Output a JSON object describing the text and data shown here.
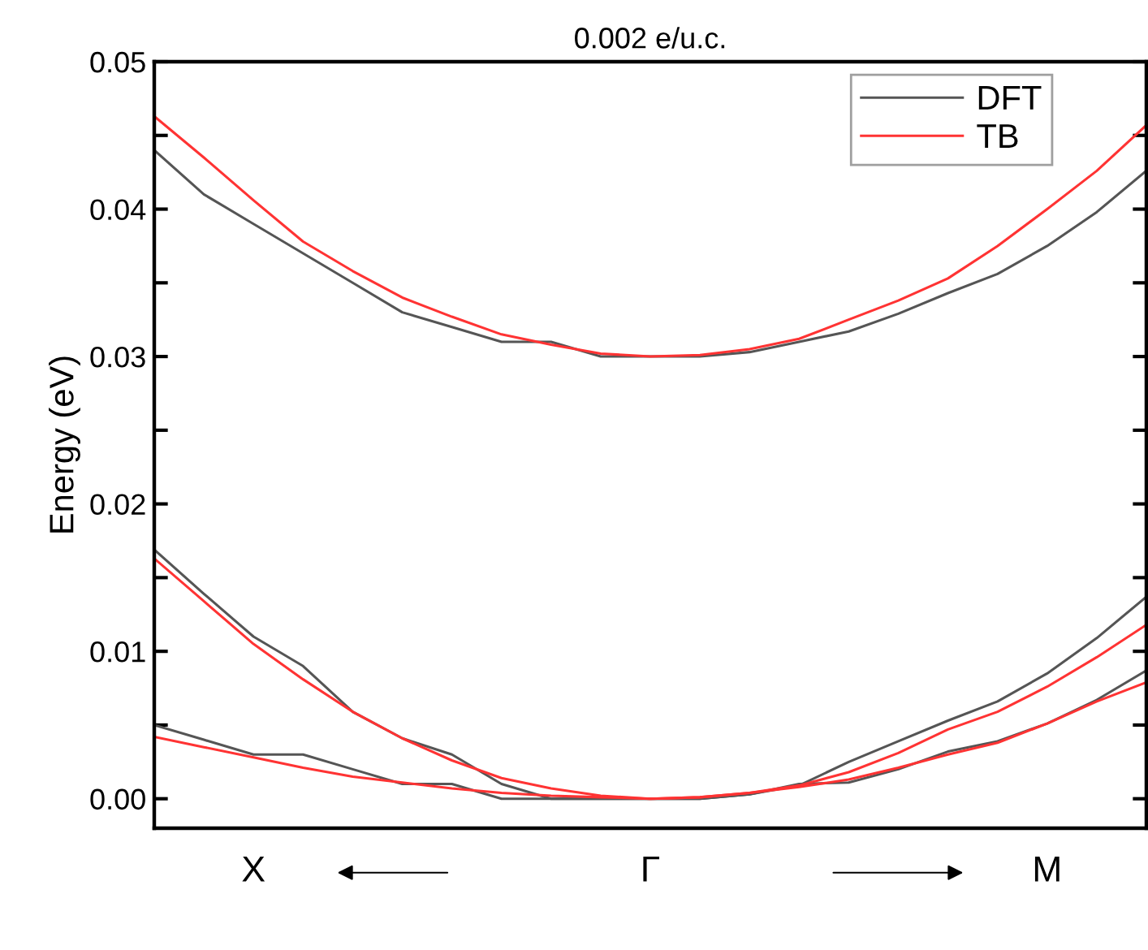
{
  "chart_data": {
    "type": "line",
    "title": "0.002 e/u.c.",
    "ylabel": "Energy (eV)",
    "categories": [
      null,
      null,
      "X",
      null,
      null,
      null,
      null,
      null,
      null,
      null,
      "Γ",
      null,
      null,
      null,
      null,
      null,
      null,
      null,
      "M",
      null,
      null
    ],
    "ylim": [
      -0.002,
      0.05
    ],
    "yticks": [
      {
        "value": 0,
        "label": "0.00"
      },
      {
        "value": 0.005,
        "label": null
      },
      {
        "value": 0.01,
        "label": "0.01"
      },
      {
        "value": 0.015,
        "label": null
      },
      {
        "value": 0.02,
        "label": "0.02"
      },
      {
        "value": 0.025,
        "label": null
      },
      {
        "value": 0.03,
        "label": "0.03"
      },
      {
        "value": 0.035,
        "label": null
      },
      {
        "value": 0.04,
        "label": "0.04"
      },
      {
        "value": 0.045,
        "label": null
      },
      {
        "value": 0.05,
        "label": "0.05"
      }
    ],
    "grid": false,
    "legend": "top right",
    "marker": "none",
    "line_style": "solid",
    "series": [
      {
        "name": "DFT",
        "color": "#555555",
        "values": [
          0.044,
          0.041,
          0.039,
          0.037,
          0.035,
          0.033,
          0.032,
          0.031,
          0.031,
          0.03,
          0.03,
          0.03,
          0.0303,
          0.031,
          0.0317,
          0.0329,
          0.0343,
          0.0356,
          0.0375,
          0.0398,
          0.0426
        ]
      },
      {
        "name": "TB",
        "color": "#ff3333",
        "values": [
          0.0463,
          0.0435,
          0.0406,
          0.0378,
          0.0358,
          0.034,
          0.0327,
          0.0315,
          0.0308,
          0.0302,
          0.03,
          0.0301,
          0.0305,
          0.0312,
          0.0325,
          0.0338,
          0.0353,
          0.0375,
          0.04,
          0.0426,
          0.0457
        ]
      },
      {
        "color": "#555555",
        "values": [
          0.0169,
          0.0139,
          0.011,
          0.009,
          0.0059,
          0.0041,
          0.003,
          0.001,
          0,
          0,
          0,
          0,
          0.0003,
          0.0009,
          0.0025,
          0.0039,
          0.0053,
          0.0066,
          0.0085,
          0.0109,
          0.0137
        ]
      },
      {
        "color": "#555555",
        "values": [
          0.005,
          0.004,
          0.003,
          0.003,
          0.002,
          0.001,
          0.001,
          0,
          0,
          0,
          0,
          0,
          0.0003,
          0.001,
          0.0011,
          0.002,
          0.0032,
          0.0039,
          0.0051,
          0.0067,
          0.0087
        ]
      },
      {
        "color": "#ff3333",
        "values": [
          0.0163,
          0.0134,
          0.0105,
          0.0081,
          0.0059,
          0.0041,
          0.0026,
          0.0014,
          0.0007,
          0.0002,
          0,
          0.0001,
          0.0004,
          0.0009,
          0.0018,
          0.0031,
          0.0047,
          0.0059,
          0.0076,
          0.0096,
          0.0118
        ]
      },
      {
        "color": "#ff3333",
        "values": [
          0.0042,
          0.0035,
          0.0028,
          0.0021,
          0.0015,
          0.0011,
          0.0007,
          0.0004,
          0.0002,
          0.0001,
          0,
          0.0001,
          0.0004,
          0.0008,
          0.0013,
          0.0021,
          0.003,
          0.0038,
          0.0051,
          0.0066,
          0.0079
        ]
      }
    ]
  }
}
